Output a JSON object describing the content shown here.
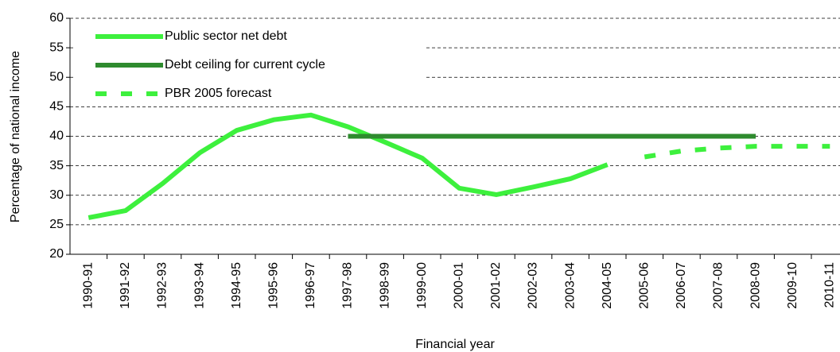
{
  "chart_data": {
    "type": "line",
    "y_label": "Percentage of national income",
    "x_label": "Financial year",
    "categories": [
      "1990-91",
      "1991-92",
      "1992-93",
      "1993-94",
      "1994-95",
      "1995-96",
      "1996-97",
      "1997-98",
      "1998-99",
      "1999-00",
      "2000-01",
      "2001-02",
      "2002-03",
      "2003-04",
      "2004-05",
      "2005-06",
      "2006-07",
      "2007-08",
      "2008-09",
      "2009-10",
      "2010-11"
    ],
    "series": [
      {
        "name": "Public sector net debt",
        "color": "#3df03d",
        "linestyle": "solid",
        "values": [
          26.2,
          27.4,
          32,
          37.2,
          41,
          42.8,
          43.6,
          41.6,
          39,
          36.3,
          31.2,
          30.1,
          31.4,
          32.8,
          35.2,
          null,
          null,
          null,
          null,
          null,
          null
        ]
      },
      {
        "name": "Debt ceiling for current cycle",
        "color": "#2e8b2e",
        "linestyle": "solid",
        "values": [
          null,
          null,
          null,
          null,
          null,
          null,
          null,
          40,
          40,
          40,
          40,
          40,
          40,
          40,
          40,
          40,
          40,
          40,
          40,
          null,
          null
        ]
      },
      {
        "name": "PBR 2005 forecast",
        "color": "#3df03d",
        "linestyle": "dashed",
        "values": [
          null,
          null,
          null,
          null,
          null,
          null,
          null,
          null,
          null,
          null,
          null,
          null,
          null,
          null,
          null,
          36.5,
          37.5,
          38,
          38.3,
          38.3,
          38.3
        ]
      }
    ],
    "ylim": [
      20,
      60
    ],
    "yticks": [
      20,
      25,
      30,
      35,
      40,
      45,
      50,
      55,
      60
    ],
    "grid": true,
    "legend": "upper left"
  }
}
